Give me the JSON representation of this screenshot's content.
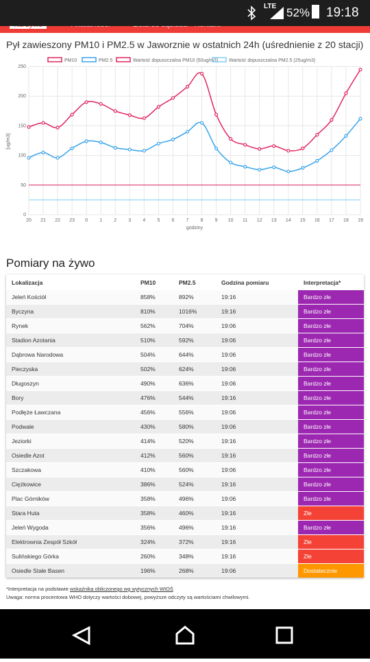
{
  "status_bar": {
    "network": "LTE",
    "battery": "52%",
    "time": "19:18"
  },
  "nav": {
    "tabs": [
      "Na żywo",
      "Aktualności",
      "Lista do sąsiada",
      "Kontakt"
    ]
  },
  "chart_data": {
    "type": "line",
    "title": "Pył zawieszony PM10 i PM2.5 w Jaworznie w ostatnich 24h (uśrednienie z 20 stacji)",
    "y_label": "[ug/m3]",
    "x_label": "godziny",
    "categories": [
      "20",
      "21",
      "22",
      "23",
      "0",
      "1",
      "2",
      "3",
      "4",
      "5",
      "6",
      "7",
      "8",
      "9",
      "10",
      "11",
      "12",
      "13",
      "14",
      "15",
      "16",
      "17",
      "18",
      "19"
    ],
    "ylim": [
      0,
      250
    ],
    "yticks": [
      0,
      50,
      100,
      150,
      200,
      250
    ],
    "grid": true,
    "series": [
      {
        "name": "PM10",
        "color": "#e0245e",
        "values": [
          148,
          155,
          147,
          169,
          190,
          187,
          175,
          168,
          163,
          182,
          197,
          216,
          238,
          169,
          128,
          118,
          111,
          116,
          108,
          112,
          135,
          160,
          205,
          245
        ]
      },
      {
        "name": "PM2.5",
        "color": "#36a2eb",
        "values": [
          96,
          105,
          96,
          112,
          124,
          122,
          113,
          110,
          108,
          120,
          127,
          140,
          155,
          112,
          88,
          81,
          76,
          80,
          73,
          79,
          91,
          109,
          133,
          162
        ]
      },
      {
        "name": "Wartość dopuszczalna PM10 (50ug/m3)",
        "color": "#e0245e",
        "values": [
          50,
          50,
          50,
          50,
          50,
          50,
          50,
          50,
          50,
          50,
          50,
          50,
          50,
          50,
          50,
          50,
          50,
          50,
          50,
          50,
          50,
          50,
          50,
          50
        ]
      },
      {
        "name": "Wartość dopuszczalna PM2.5 (25ug/m3)",
        "color": "#7fcdf0",
        "values": [
          25,
          25,
          25,
          25,
          25,
          25,
          25,
          25,
          25,
          25,
          25,
          25,
          25,
          25,
          25,
          25,
          25,
          25,
          25,
          25,
          25,
          25,
          25,
          25
        ]
      }
    ]
  },
  "section_title": "Pomiary na żywo",
  "table": {
    "headers": [
      "Lokalizacja",
      "PM10",
      "PM2.5",
      "Godzina pomiaru",
      "Interpretacja*"
    ],
    "rows": [
      [
        "Jeleń Kościół",
        "858%",
        "892%",
        "19:16",
        "Bardzo złe"
      ],
      [
        "Byczyna",
        "810%",
        "1016%",
        "19:16",
        "Bardzo złe"
      ],
      [
        "Rynek",
        "562%",
        "704%",
        "19:06",
        "Bardzo złe"
      ],
      [
        "Stadion Azotania",
        "510%",
        "592%",
        "19:06",
        "Bardzo złe"
      ],
      [
        "Dąbrowa Narodowa",
        "504%",
        "644%",
        "19:06",
        "Bardzo złe"
      ],
      [
        "Pieczyska",
        "502%",
        "624%",
        "19:06",
        "Bardzo złe"
      ],
      [
        "Długoszyn",
        "490%",
        "636%",
        "19:06",
        "Bardzo złe"
      ],
      [
        "Bory",
        "476%",
        "544%",
        "19:16",
        "Bardzo złe"
      ],
      [
        "Podłęże Ławczana",
        "456%",
        "556%",
        "19:06",
        "Bardzo złe"
      ],
      [
        "Podwale",
        "430%",
        "580%",
        "19:06",
        "Bardzo złe"
      ],
      [
        "Jeziorki",
        "414%",
        "520%",
        "19:16",
        "Bardzo złe"
      ],
      [
        "Osiedle Azot",
        "412%",
        "560%",
        "19:16",
        "Bardzo złe"
      ],
      [
        "Szczakowa",
        "410%",
        "560%",
        "19:06",
        "Bardzo złe"
      ],
      [
        "Ciężkowice",
        "386%",
        "524%",
        "19:16",
        "Bardzo złe"
      ],
      [
        "Plac Górników",
        "358%",
        "496%",
        "19:06",
        "Bardzo złe"
      ],
      [
        "Stara Huta",
        "358%",
        "460%",
        "19:16",
        "Złe"
      ],
      [
        "Jeleń Wygoda",
        "356%",
        "496%",
        "19:16",
        "Bardzo złe"
      ],
      [
        "Elektrownia Zespół Szkół",
        "324%",
        "372%",
        "19:16",
        "Złe"
      ],
      [
        "Sulińskiego Górka",
        "260%",
        "348%",
        "19:16",
        "Złe"
      ],
      [
        "Osiedle Stałe Basen",
        "196%",
        "268%",
        "19:06",
        "Dostatecznie"
      ]
    ],
    "row_colors": [
      "#9c27b0",
      "#9c27b0",
      "#9c27b0",
      "#9c27b0",
      "#9c27b0",
      "#9c27b0",
      "#9c27b0",
      "#9c27b0",
      "#9c27b0",
      "#9c27b0",
      "#9c27b0",
      "#9c27b0",
      "#9c27b0",
      "#9c27b0",
      "#9c27b0",
      "#f44336",
      "#9c27b0",
      "#f44336",
      "#f44336",
      "#ff9800"
    ]
  },
  "footnote": {
    "prefix": "*Interpretacja na podstawie",
    "link": "wskaźnika obliczonego wg wytycznych WIOŚ",
    "note": "Uwaga: norma procentowa WHO dotyczy wartości dobowej, powyższe odczyty są wartościami chwilowymi."
  }
}
